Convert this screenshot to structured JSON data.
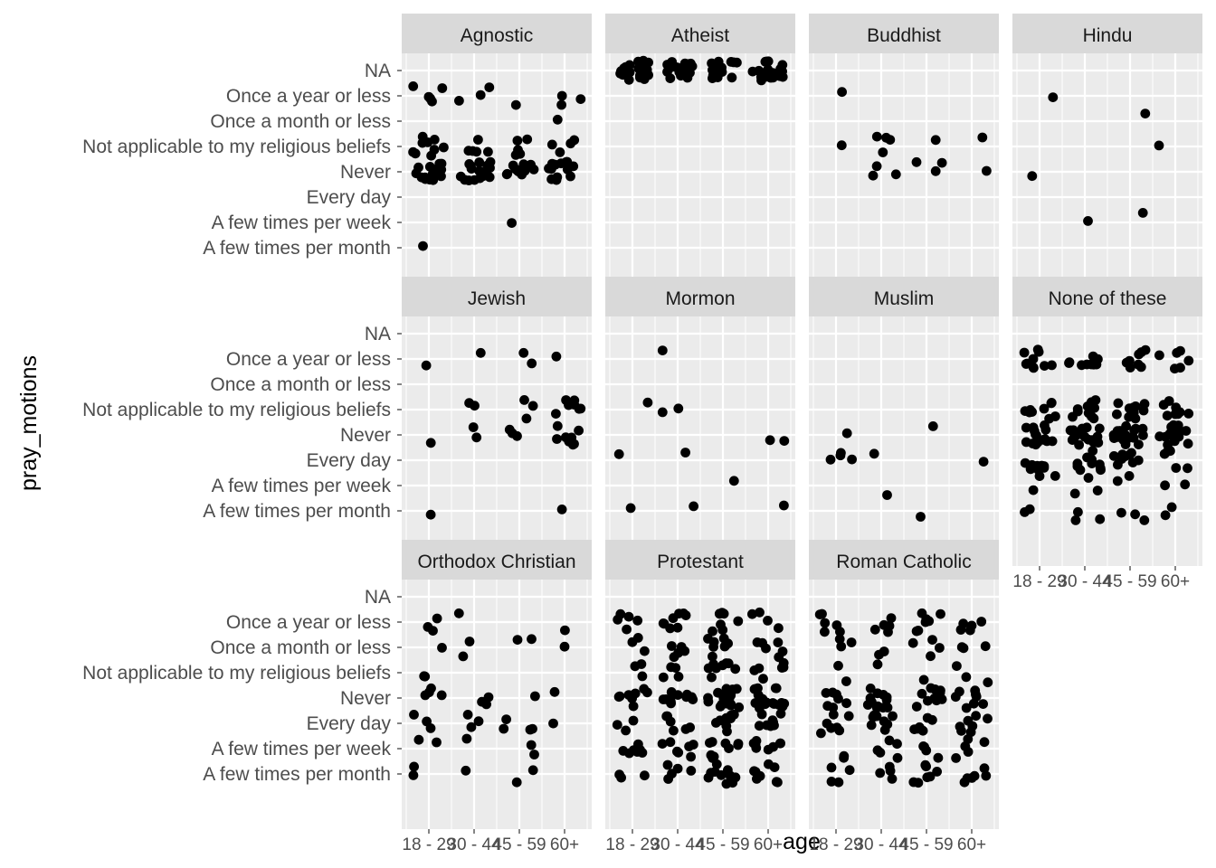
{
  "chart_data": {
    "type": "scatter",
    "jitter": true,
    "xlabel": "age",
    "ylabel": "pray_motions",
    "x_categories": [
      "18 - 29",
      "30 - 44",
      "45 - 59",
      "60+"
    ],
    "y_categories": [
      "NA",
      "Once a year or less",
      "Once a month or less",
      "Not applicable to my religious beliefs",
      "Never",
      "Every day",
      "A few times per week",
      "A few times per month"
    ],
    "grid": true,
    "legend": "none",
    "colors": {
      "panel_bg": "#ebebeb",
      "strip_bg": "#d9d9d9",
      "grid": "#ffffff",
      "point": "#000000"
    },
    "panels": [
      {
        "title": "Agnostic",
        "points": [
          [
            "18 - 29",
            "Once a year or less",
            5
          ],
          [
            "30 - 44",
            "Once a year or less",
            3
          ],
          [
            "45 - 59",
            "Once a year or less",
            1
          ],
          [
            "60+",
            "Once a year or less",
            3
          ],
          [
            "60+",
            "Once a month or less",
            1
          ],
          [
            "18 - 29",
            "Not applicable to my religious beliefs",
            9
          ],
          [
            "30 - 44",
            "Not applicable to my religious beliefs",
            5
          ],
          [
            "45 - 59",
            "Not applicable to my religious beliefs",
            5
          ],
          [
            "60+",
            "Not applicable to my religious beliefs",
            4
          ],
          [
            "18 - 29",
            "Never",
            16
          ],
          [
            "30 - 44",
            "Never",
            17
          ],
          [
            "45 - 59",
            "Never",
            12
          ],
          [
            "60+",
            "Never",
            14
          ],
          [
            "45 - 59",
            "A few times per week",
            1
          ],
          [
            "18 - 29",
            "A few times per month",
            1
          ]
        ]
      },
      {
        "title": "Atheist",
        "points": [
          [
            "18 - 29",
            "NA",
            22
          ],
          [
            "30 - 44",
            "NA",
            19
          ],
          [
            "45 - 59",
            "NA",
            17
          ],
          [
            "60+",
            "NA",
            21
          ]
        ]
      },
      {
        "title": "Buddhist",
        "points": [
          [
            "18 - 29",
            "Once a year or less",
            1
          ],
          [
            "18 - 29",
            "Not applicable to my religious beliefs",
            1
          ],
          [
            "30 - 44",
            "Not applicable to my religious beliefs",
            4
          ],
          [
            "45 - 59",
            "Not applicable to my religious beliefs",
            1
          ],
          [
            "60+",
            "Not applicable to my religious beliefs",
            1
          ],
          [
            "30 - 44",
            "Never",
            3
          ],
          [
            "45 - 59",
            "Never",
            3
          ],
          [
            "60+",
            "Never",
            1
          ]
        ]
      },
      {
        "title": "Hindu",
        "points": [
          [
            "18 - 29",
            "Once a year or less",
            1
          ],
          [
            "45 - 59",
            "Once a month or less",
            1
          ],
          [
            "18 - 29",
            "Never",
            1
          ],
          [
            "60+",
            "Not applicable to my religious beliefs",
            1
          ],
          [
            "45 - 59",
            "A few times per week",
            1
          ],
          [
            "30 - 44",
            "A few times per week",
            1
          ]
        ]
      },
      {
        "title": "Jewish",
        "points": [
          [
            "18 - 29",
            "Once a year or less",
            1
          ],
          [
            "30 - 44",
            "Once a year or less",
            1
          ],
          [
            "45 - 59",
            "Once a year or less",
            2
          ],
          [
            "60+",
            "Once a year or less",
            1
          ],
          [
            "30 - 44",
            "Not applicable to my religious beliefs",
            2
          ],
          [
            "45 - 59",
            "Not applicable to my religious beliefs",
            3
          ],
          [
            "60+",
            "Not applicable to my religious beliefs",
            7
          ],
          [
            "18 - 29",
            "Never",
            1
          ],
          [
            "30 - 44",
            "Never",
            2
          ],
          [
            "45 - 59",
            "Never",
            3
          ],
          [
            "60+",
            "Never",
            8
          ],
          [
            "60+",
            "A few times per month",
            1
          ],
          [
            "18 - 29",
            "A few times per month",
            1
          ]
        ]
      },
      {
        "title": "Mormon",
        "points": [
          [
            "30 - 44",
            "Once a year or less",
            1
          ],
          [
            "18 - 29",
            "Not applicable to my religious beliefs",
            1
          ],
          [
            "30 - 44",
            "Not applicable to my religious beliefs",
            2
          ],
          [
            "60+",
            "Never",
            2
          ],
          [
            "30 - 44",
            "Every day",
            1
          ],
          [
            "18 - 29",
            "Every day",
            1
          ],
          [
            "45 - 59",
            "A few times per week",
            1
          ],
          [
            "18 - 29",
            "A few times per month",
            1
          ],
          [
            "30 - 44",
            "A few times per month",
            1
          ],
          [
            "60+",
            "A few times per month",
            1
          ]
        ]
      },
      {
        "title": "Muslim",
        "points": [
          [
            "18 - 29",
            "Never",
            1
          ],
          [
            "45 - 59",
            "Never",
            1
          ],
          [
            "18 - 29",
            "Every day",
            4
          ],
          [
            "30 - 44",
            "Every day",
            1
          ],
          [
            "60+",
            "Every day",
            1
          ],
          [
            "30 - 44",
            "A few times per week",
            1
          ],
          [
            "45 - 59",
            "A few times per month",
            1
          ]
        ]
      },
      {
        "title": "None of these",
        "points": [
          [
            "18 - 29",
            "Once a year or less",
            10
          ],
          [
            "30 - 44",
            "Once a year or less",
            9
          ],
          [
            "45 - 59",
            "Once a year or less",
            8
          ],
          [
            "60+",
            "Once a year or less",
            6
          ],
          [
            "18 - 29",
            "Not applicable to my religious beliefs",
            9
          ],
          [
            "30 - 44",
            "Not applicable to my religious beliefs",
            10
          ],
          [
            "45 - 59",
            "Not applicable to my religious beliefs",
            11
          ],
          [
            "60+",
            "Not applicable to my religious beliefs",
            8
          ],
          [
            "18 - 29",
            "Never",
            15
          ],
          [
            "30 - 44",
            "Never",
            18
          ],
          [
            "45 - 59",
            "Never",
            18
          ],
          [
            "60+",
            "Never",
            14
          ],
          [
            "18 - 29",
            "Every day",
            8
          ],
          [
            "30 - 44",
            "Every day",
            10
          ],
          [
            "45 - 59",
            "Every day",
            9
          ],
          [
            "60+",
            "Every day",
            5
          ],
          [
            "18 - 29",
            "A few times per week",
            3
          ],
          [
            "30 - 44",
            "A few times per week",
            3
          ],
          [
            "45 - 59",
            "A few times per week",
            2
          ],
          [
            "60+",
            "A few times per week",
            2
          ],
          [
            "18 - 29",
            "A few times per month",
            2
          ],
          [
            "30 - 44",
            "A few times per month",
            3
          ],
          [
            "45 - 59",
            "A few times per month",
            3
          ],
          [
            "60+",
            "A few times per month",
            2
          ]
        ]
      },
      {
        "title": "Orthodox Christian",
        "points": [
          [
            "18 - 29",
            "Once a year or less",
            3
          ],
          [
            "30 - 44",
            "Once a year or less",
            1
          ],
          [
            "60+",
            "Once a year or less",
            1
          ],
          [
            "18 - 29",
            "Once a month or less",
            1
          ],
          [
            "30 - 44",
            "Once a month or less",
            2
          ],
          [
            "45 - 59",
            "Once a month or less",
            2
          ],
          [
            "60+",
            "Once a month or less",
            1
          ],
          [
            "18 - 29",
            "Not applicable to my religious beliefs",
            2
          ],
          [
            "18 - 29",
            "Never",
            4
          ],
          [
            "30 - 44",
            "Never",
            4
          ],
          [
            "45 - 59",
            "Never",
            1
          ],
          [
            "60+",
            "Never",
            1
          ],
          [
            "18 - 29",
            "Every day",
            3
          ],
          [
            "30 - 44",
            "Every day",
            3
          ],
          [
            "45 - 59",
            "Every day",
            4
          ],
          [
            "60+",
            "Every day",
            1
          ],
          [
            "18 - 29",
            "A few times per week",
            2
          ],
          [
            "30 - 44",
            "A few times per week",
            1
          ],
          [
            "45 - 59",
            "A few times per week",
            2
          ],
          [
            "18 - 29",
            "A few times per month",
            2
          ],
          [
            "30 - 44",
            "A few times per month",
            1
          ],
          [
            "45 - 59",
            "A few times per month",
            2
          ]
        ]
      },
      {
        "title": "Protestant",
        "points": [
          [
            "18 - 29",
            "Once a year or less",
            5
          ],
          [
            "30 - 44",
            "Once a year or less",
            8
          ],
          [
            "45 - 59",
            "Once a year or less",
            8
          ],
          [
            "60+",
            "Once a year or less",
            4
          ],
          [
            "18 - 29",
            "Once a month or less",
            3
          ],
          [
            "30 - 44",
            "Once a month or less",
            5
          ],
          [
            "45 - 59",
            "Once a month or less",
            8
          ],
          [
            "60+",
            "Once a month or less",
            6
          ],
          [
            "18 - 29",
            "Not applicable to my religious beliefs",
            3
          ],
          [
            "30 - 44",
            "Not applicable to my religious beliefs",
            4
          ],
          [
            "45 - 59",
            "Not applicable to my religious beliefs",
            8
          ],
          [
            "60+",
            "Not applicable to my religious beliefs",
            6
          ],
          [
            "18 - 29",
            "Never",
            9
          ],
          [
            "30 - 44",
            "Never",
            11
          ],
          [
            "45 - 59",
            "Never",
            20
          ],
          [
            "60+",
            "Never",
            18
          ],
          [
            "18 - 29",
            "Every day",
            3
          ],
          [
            "30 - 44",
            "Every day",
            6
          ],
          [
            "45 - 59",
            "Every day",
            8
          ],
          [
            "60+",
            "Every day",
            8
          ],
          [
            "18 - 29",
            "A few times per week",
            7
          ],
          [
            "30 - 44",
            "A few times per week",
            7
          ],
          [
            "45 - 59",
            "A few times per week",
            9
          ],
          [
            "60+",
            "A few times per week",
            8
          ],
          [
            "18 - 29",
            "A few times per month",
            3
          ],
          [
            "30 - 44",
            "A few times per month",
            5
          ],
          [
            "45 - 59",
            "A few times per month",
            10
          ],
          [
            "60+",
            "A few times per month",
            9
          ]
        ]
      },
      {
        "title": "Roman Catholic",
        "points": [
          [
            "18 - 29",
            "Once a year or less",
            6
          ],
          [
            "30 - 44",
            "Once a year or less",
            5
          ],
          [
            "45 - 59",
            "Once a year or less",
            7
          ],
          [
            "60+",
            "Once a year or less",
            5
          ],
          [
            "18 - 29",
            "Once a month or less",
            3
          ],
          [
            "30 - 44",
            "Once a month or less",
            2
          ],
          [
            "45 - 59",
            "Once a month or less",
            4
          ],
          [
            "60+",
            "Once a month or less",
            3
          ],
          [
            "18 - 29",
            "Not applicable to my religious beliefs",
            2
          ],
          [
            "30 - 44",
            "Not applicable to my religious beliefs",
            1
          ],
          [
            "45 - 59",
            "Not applicable to my religious beliefs",
            1
          ],
          [
            "60+",
            "Not applicable to my religious beliefs",
            3
          ],
          [
            "18 - 29",
            "Never",
            7
          ],
          [
            "30 - 44",
            "Never",
            12
          ],
          [
            "45 - 59",
            "Never",
            10
          ],
          [
            "60+",
            "Never",
            8
          ],
          [
            "18 - 29",
            "Every day",
            7
          ],
          [
            "30 - 44",
            "Every day",
            8
          ],
          [
            "45 - 59",
            "Every day",
            6
          ],
          [
            "60+",
            "Every day",
            7
          ],
          [
            "18 - 29",
            "A few times per week",
            2
          ],
          [
            "30 - 44",
            "A few times per week",
            5
          ],
          [
            "45 - 59",
            "A few times per week",
            4
          ],
          [
            "60+",
            "A few times per week",
            5
          ],
          [
            "18 - 29",
            "A few times per month",
            4
          ],
          [
            "30 - 44",
            "A few times per month",
            4
          ],
          [
            "45 - 59",
            "A few times per month",
            7
          ],
          [
            "60+",
            "A few times per month",
            6
          ]
        ]
      }
    ]
  }
}
